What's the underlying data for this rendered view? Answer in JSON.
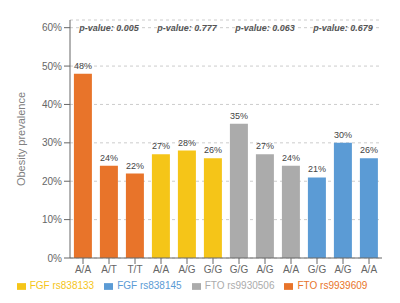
{
  "chart_data": {
    "type": "bar",
    "categories": [
      "A/A",
      "A/T",
      "T/T",
      "A/A",
      "A/G",
      "G/G",
      "G/G",
      "A/G",
      "A/A",
      "G/G",
      "A/G",
      "A/A"
    ],
    "series": [
      {
        "name": "FTO rs9939609",
        "color": "#E8742A",
        "values": [
          48,
          24,
          22,
          null,
          null,
          null,
          null,
          null,
          null,
          null,
          null,
          null
        ],
        "value_labels": [
          "48%",
          "24%",
          "22%",
          null,
          null,
          null,
          null,
          null,
          null,
          null,
          null,
          null
        ]
      },
      {
        "name": "FGF rs838133",
        "color": "#F5C518",
        "values": [
          null,
          null,
          null,
          27,
          28,
          26,
          null,
          null,
          null,
          null,
          null,
          null
        ],
        "value_labels": [
          null,
          null,
          null,
          "27%",
          "28%",
          "26%",
          null,
          null,
          null,
          null,
          null,
          null
        ]
      },
      {
        "name": "FTO rs9930506",
        "color": "#ABABAB",
        "values": [
          null,
          null,
          null,
          null,
          null,
          null,
          35,
          27,
          24,
          null,
          null,
          null
        ],
        "value_labels": [
          null,
          null,
          null,
          null,
          null,
          null,
          "35%",
          "27%",
          "24%",
          null,
          null,
          null
        ]
      },
      {
        "name": "FGF rs838145",
        "color": "#5B9BD5",
        "values": [
          null,
          null,
          null,
          null,
          null,
          null,
          null,
          null,
          null,
          21,
          30,
          26
        ],
        "value_labels": [
          null,
          null,
          null,
          null,
          null,
          null,
          null,
          null,
          null,
          "21%",
          "30%",
          "26%"
        ]
      }
    ],
    "annotations": [
      "p-value: 0.005",
      "p-value: 0.777",
      "p-value: 0.063",
      "p-value: 0.679"
    ],
    "ylabel": "Obesity prevalence",
    "ylim": [
      0,
      62
    ],
    "yticks": [
      {
        "value": 0,
        "label": "0%"
      },
      {
        "value": 10,
        "label": "10%"
      },
      {
        "value": 20,
        "label": "20%"
      },
      {
        "value": 30,
        "label": "30%"
      },
      {
        "value": 40,
        "label": "40%"
      },
      {
        "value": 50,
        "label": "50%"
      },
      {
        "value": 60,
        "label": "60%"
      }
    ],
    "grid": true,
    "legend": "bottom",
    "data_labels": true
  }
}
